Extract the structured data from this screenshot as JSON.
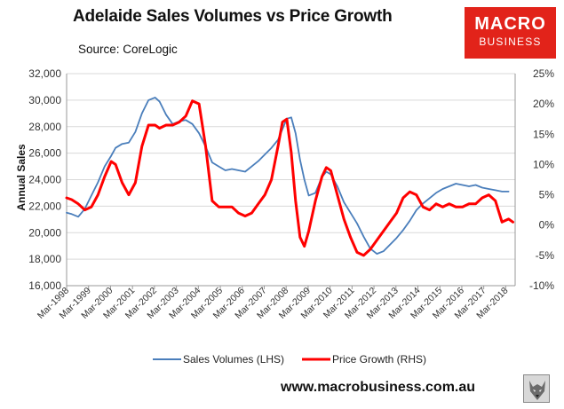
{
  "header": {
    "title": "Adelaide Sales Volumes vs Price Growth",
    "source": "Source: CoreLogic",
    "logo_line1": "MACRO",
    "logo_line2": "BUSINESS",
    "website": "www.macrobusiness.com.au"
  },
  "colors": {
    "sales": "#4a7ebb",
    "price": "#ff0000",
    "logo": "#e2231a"
  },
  "chart_data": {
    "type": "line",
    "title": "Adelaide Sales Volumes vs Price Growth",
    "ylabel": "Annual Sales",
    "y2label": "",
    "ylim": [
      16000,
      32000
    ],
    "y2lim": [
      -10,
      25
    ],
    "yticks": [
      16000,
      18000,
      20000,
      22000,
      24000,
      26000,
      28000,
      30000,
      32000
    ],
    "ytick_labels": [
      "16,000",
      "18,000",
      "20,000",
      "22,000",
      "24,000",
      "26,000",
      "28,000",
      "30,000",
      "32,000"
    ],
    "y2ticks": [
      -10,
      -5,
      0,
      5,
      10,
      15,
      20,
      25
    ],
    "y2tick_labels": [
      "-10%",
      "-5%",
      "0%",
      "5%",
      "10%",
      "15%",
      "20%",
      "25%"
    ],
    "xlim": [
      1998.17,
      2018.6
    ],
    "xticks": [
      1998.17,
      1999.17,
      2000.17,
      2001.17,
      2002.17,
      2003.17,
      2004.17,
      2005.17,
      2006.17,
      2007.17,
      2008.17,
      2009.17,
      2010.17,
      2011.17,
      2012.17,
      2013.17,
      2014.17,
      2015.17,
      2016.17,
      2017.17,
      2018.17
    ],
    "xtick_labels": [
      "Mar-1998",
      "Mar-1999",
      "Mar-2000",
      "Mar-2001",
      "Mar-2002",
      "Mar-2003",
      "Mar-2004",
      "Mar-2005",
      "Mar-2006",
      "Mar-2007",
      "Mar-2008",
      "Mar-2009",
      "Mar-2010",
      "Mar-2011",
      "Mar-2012",
      "Mar-2013",
      "Mar-2014",
      "Mar-2015",
      "Mar-2016",
      "Mar-2017",
      "Mar-2018"
    ],
    "grid": "horizontal",
    "legend_position": "bottom",
    "series": [
      {
        "name": "Sales Volumes (LHS)",
        "axis": "left",
        "x": [
          1998.17,
          1998.4,
          1998.7,
          1999.0,
          1999.3,
          1999.6,
          1999.9,
          2000.2,
          2000.4,
          2000.7,
          2001.0,
          2001.3,
          2001.6,
          2001.9,
          2002.2,
          2002.4,
          2002.7,
          2003.0,
          2003.3,
          2003.6,
          2003.9,
          2004.2,
          2004.5,
          2004.8,
          2005.1,
          2005.4,
          2005.7,
          2006.0,
          2006.3,
          2006.6,
          2006.9,
          2007.2,
          2007.5,
          2007.8,
          2008.0,
          2008.2,
          2008.4,
          2008.6,
          2008.8,
          2009.0,
          2009.2,
          2009.5,
          2009.8,
          2010.0,
          2010.2,
          2010.5,
          2010.8,
          2011.1,
          2011.4,
          2011.7,
          2012.0,
          2012.3,
          2012.6,
          2012.9,
          2013.2,
          2013.5,
          2013.8,
          2014.1,
          2014.4,
          2014.7,
          2015.0,
          2015.3,
          2015.6,
          2015.9,
          2016.2,
          2016.5,
          2016.8,
          2017.1,
          2017.4,
          2017.7,
          2018.0,
          2018.3
        ],
        "values": [
          21500,
          21400,
          21200,
          21800,
          22800,
          23800,
          25000,
          25800,
          26400,
          26700,
          26800,
          27600,
          29000,
          30000,
          30200,
          29900,
          28900,
          28200,
          28400,
          28500,
          28200,
          27500,
          26500,
          25300,
          25000,
          24700,
          24800,
          24700,
          24600,
          25000,
          25400,
          25900,
          26400,
          27000,
          27800,
          28600,
          28700,
          27500,
          25500,
          24000,
          22800,
          23000,
          24200,
          24600,
          24400,
          23500,
          22300,
          21500,
          20700,
          19700,
          18800,
          18400,
          18600,
          19100,
          19600,
          20200,
          20900,
          21700,
          22200,
          22600,
          23000,
          23300,
          23500,
          23700,
          23600,
          23500,
          23600,
          23400,
          23300,
          23200,
          23100,
          23100
        ]
      },
      {
        "name": "Price Growth (RHS)",
        "axis": "right",
        "x": [
          1998.17,
          1998.4,
          1998.7,
          1999.0,
          1999.3,
          1999.6,
          1999.9,
          2000.2,
          2000.4,
          2000.7,
          2001.0,
          2001.3,
          2001.6,
          2001.9,
          2002.2,
          2002.4,
          2002.7,
          2003.0,
          2003.3,
          2003.6,
          2003.9,
          2004.2,
          2004.5,
          2004.8,
          2005.1,
          2005.4,
          2005.7,
          2006.0,
          2006.3,
          2006.6,
          2006.9,
          2007.2,
          2007.5,
          2007.8,
          2008.0,
          2008.2,
          2008.4,
          2008.6,
          2008.8,
          2009.0,
          2009.2,
          2009.5,
          2009.8,
          2010.0,
          2010.2,
          2010.5,
          2010.8,
          2011.1,
          2011.4,
          2011.7,
          2012.0,
          2012.3,
          2012.6,
          2012.9,
          2013.2,
          2013.5,
          2013.8,
          2014.1,
          2014.4,
          2014.7,
          2015.0,
          2015.3,
          2015.6,
          2015.9,
          2016.2,
          2016.5,
          2016.8,
          2017.1,
          2017.4,
          2017.7,
          2018.0,
          2018.3,
          2018.5
        ],
        "values": [
          4.5,
          4.2,
          3.5,
          2.5,
          3.0,
          5.0,
          8.0,
          10.5,
          10.0,
          7.0,
          5.0,
          7.0,
          13.0,
          16.5,
          16.5,
          16.0,
          16.5,
          16.5,
          17.0,
          18.0,
          20.5,
          20.0,
          13.0,
          4.0,
          3.0,
          3.0,
          3.0,
          2.0,
          1.5,
          2.0,
          3.5,
          5.0,
          7.5,
          13.0,
          17.0,
          17.5,
          12.0,
          4.0,
          -2.0,
          -3.5,
          -1.0,
          4.0,
          8.0,
          9.5,
          9.0,
          5.0,
          1.0,
          -2.0,
          -4.5,
          -5.0,
          -4.0,
          -2.5,
          -1.0,
          0.5,
          2.0,
          4.5,
          5.5,
          5.0,
          3.0,
          2.5,
          3.5,
          3.0,
          3.5,
          3.0,
          3.0,
          3.5,
          3.5,
          4.5,
          5.0,
          4.0,
          0.5,
          1.0,
          0.5
        ]
      }
    ]
  }
}
